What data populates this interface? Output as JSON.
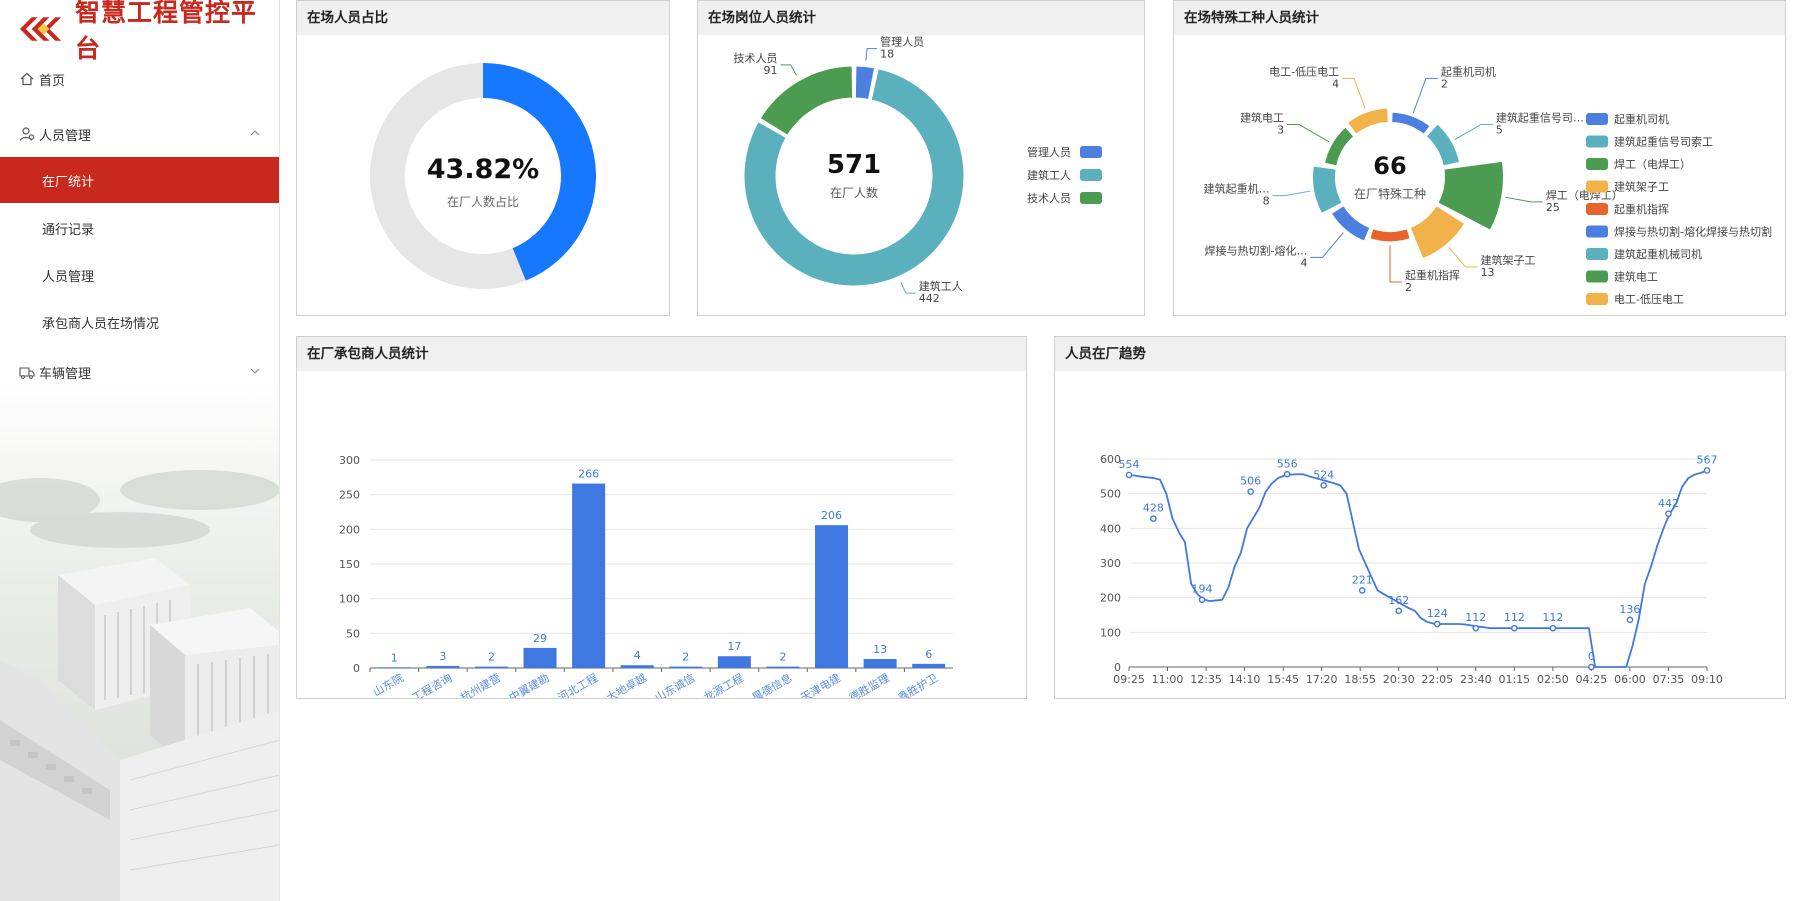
{
  "app": {
    "title": "智慧工程管控平台"
  },
  "sidebar": {
    "items": [
      {
        "label": "首页",
        "icon": "home-icon"
      },
      {
        "label": "人员管理",
        "icon": "users-icon",
        "expanded": true
      },
      {
        "label": "车辆管理",
        "icon": "truck-icon",
        "expanded": false
      }
    ],
    "sub_items": [
      {
        "label": "在厂统计",
        "active": true
      },
      {
        "label": "通行记录"
      },
      {
        "label": "人员管理"
      },
      {
        "label": "承包商人员在场情况"
      }
    ]
  },
  "colors": {
    "brand": "#c9281e",
    "blue": "#1677ff",
    "series_blue": "#4b7fe0",
    "series_teal": "#5bb0bd",
    "series_green": "#4b9c50",
    "series_yellow": "#f2b24a",
    "series_orange": "#e8622c",
    "ring_gray": "#e6e6e6"
  },
  "panels": {
    "occupancy": {
      "title": "在场人员占比"
    },
    "positions": {
      "title": "在场岗位人员统计"
    },
    "special": {
      "title": "在场特殊工种人员统计"
    },
    "contractors": {
      "title": "在厂承包商人员统计"
    },
    "trend": {
      "title": "人员在厂趋势"
    }
  },
  "chart_data": [
    {
      "type": "pie",
      "subtype": "donut",
      "center_value": "43.82%",
      "center_label": "在厂人数占比",
      "values": [
        43.82,
        56.18
      ]
    },
    {
      "type": "pie",
      "subtype": "donut",
      "center_value": "571",
      "center_label": "在厂人数",
      "categories": [
        "管理人员",
        "建筑工人",
        "技术人员"
      ],
      "values": [
        18,
        442,
        91
      ],
      "colors": [
        "#4b7fe0",
        "#5bb0bd",
        "#4b9c50"
      ],
      "legend": "right"
    },
    {
      "type": "pie",
      "subtype": "rose",
      "center_value": "66",
      "center_label": "在厂特殊工种",
      "categories": [
        "起重机司机",
        "建筑起重信号司索工",
        "焊工（电焊工）",
        "建筑架子工",
        "起重机指挥",
        "焊接与热切割-熔化焊接与热切割",
        "建筑起重机械司机",
        "建筑电工",
        "电工-低压电工"
      ],
      "label_texts": [
        "起重机司机",
        "建筑起重信号司…",
        "焊工（电焊工）",
        "建筑架子工",
        "起重机指挥",
        "焊接与热切割-熔化…",
        "建筑起重机…",
        "建筑电工",
        "电工-低压电工"
      ],
      "values": [
        2,
        5,
        25,
        13,
        2,
        4,
        8,
        3,
        4
      ],
      "colors": [
        "#4b7fe0",
        "#5bb0bd",
        "#4b9c50",
        "#f2b24a",
        "#e8622c",
        "#4b7fe0",
        "#5bb0bd",
        "#4b9c50",
        "#f2b24a"
      ],
      "legend": "right"
    },
    {
      "type": "bar",
      "categories": [
        "山东院",
        "工程咨询",
        "杭州建营",
        "中翼建勘",
        "河北工程",
        "大地卓越",
        "山东诚信",
        "龙源工程",
        "晨德信息",
        "天津电建",
        "德胜监理",
        "鑫胜护卫"
      ],
      "values": [
        1,
        3,
        2,
        29,
        266,
        4,
        2,
        17,
        2,
        206,
        13,
        6
      ],
      "ylim": [
        0,
        300
      ],
      "yticks": [
        0,
        50,
        100,
        150,
        200,
        250,
        300
      ],
      "color": "#3e78e0"
    },
    {
      "type": "line",
      "x_ticks": [
        "09:25",
        "11:00",
        "12:35",
        "14:10",
        "15:45",
        "17:20",
        "18:55",
        "20:30",
        "22:05",
        "23:40",
        "01:15",
        "02:50",
        "04:25",
        "06:00",
        "07:35",
        "09:10"
      ],
      "ylim": [
        0,
        600
      ],
      "yticks": [
        0,
        100,
        200,
        300,
        400,
        500,
        600
      ],
      "labeled_points": [
        {
          "x": "09:25",
          "y": 554
        },
        {
          "x": "10:25",
          "y": 428
        },
        {
          "x": "12:25",
          "y": 194
        },
        {
          "x": "14:25",
          "y": 506
        },
        {
          "x": "15:55",
          "y": 556
        },
        {
          "x": "17:25",
          "y": 524
        },
        {
          "x": "19:00",
          "y": 221
        },
        {
          "x": "20:30",
          "y": 162
        },
        {
          "x": "22:05",
          "y": 124
        },
        {
          "x": "23:40",
          "y": 112
        },
        {
          "x": "01:15",
          "y": 112
        },
        {
          "x": "02:50",
          "y": 112
        },
        {
          "x": "04:25",
          "y": 0
        },
        {
          "x": "06:00",
          "y": 136
        },
        {
          "x": "07:35",
          "y": 442
        },
        {
          "x": "09:10",
          "y": 567
        }
      ],
      "series": [
        {
          "values": [
            554,
            552,
            549,
            547,
            545,
            540,
            500,
            428,
            390,
            360,
            240,
            210,
            195,
            190,
            192,
            194,
            230,
            290,
            330,
            400,
            430,
            460,
            506,
            530,
            545,
            552,
            555,
            556,
            556,
            550,
            545,
            540,
            535,
            530,
            524,
            500,
            420,
            340,
            300,
            260,
            221,
            210,
            200,
            190,
            180,
            170,
            162,
            140,
            130,
            125,
            124,
            124,
            124,
            124,
            123,
            120,
            117,
            115,
            112,
            112,
            112,
            112,
            112,
            112,
            112,
            112,
            112,
            112,
            112,
            112,
            112,
            112,
            112,
            112,
            112,
            0,
            0,
            0,
            0,
            0,
            0,
            60,
            136,
            240,
            290,
            350,
            400,
            442,
            470,
            520,
            545,
            555,
            560,
            567
          ]
        }
      ],
      "color": "#3e78e0"
    }
  ]
}
